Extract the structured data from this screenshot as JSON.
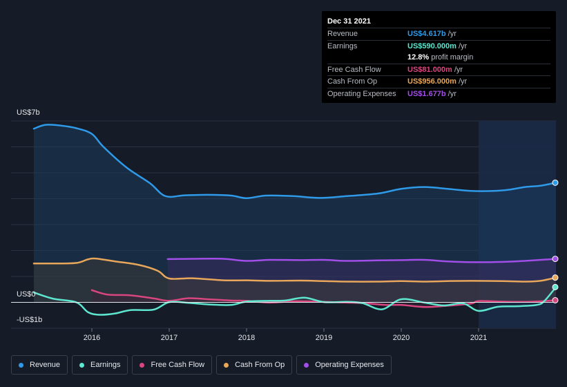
{
  "tooltip": {
    "date": "Dec 31 2021",
    "rows": [
      {
        "label": "Revenue",
        "value": "US$4.617b",
        "unit": "/yr",
        "color": "#2f9be8"
      },
      {
        "label": "Earnings",
        "value": "US$590.000m",
        "unit": "/yr",
        "color": "#5ee6cf"
      },
      {
        "label": "",
        "value": "12.8%",
        "unit": "profit margin",
        "color": "#ffffff"
      },
      {
        "label": "Free Cash Flow",
        "value": "US$81.000m",
        "unit": "/yr",
        "color": "#d9467f"
      },
      {
        "label": "Cash From Op",
        "value": "US$956.000m",
        "unit": "/yr",
        "color": "#e8a75a"
      },
      {
        "label": "Operating Expenses",
        "value": "US$1.677b",
        "unit": "/yr",
        "color": "#a24ee8"
      }
    ]
  },
  "legend": [
    {
      "label": "Revenue",
      "color": "#2f9be8"
    },
    {
      "label": "Earnings",
      "color": "#5ee6cf"
    },
    {
      "label": "Free Cash Flow",
      "color": "#d9467f"
    },
    {
      "label": "Cash From Op",
      "color": "#e8a75a"
    },
    {
      "label": "Operating Expenses",
      "color": "#a24ee8"
    }
  ],
  "chart_data": {
    "type": "area",
    "y_unit": "US$ billions",
    "ylim": [
      -1,
      7
    ],
    "y_tick_labels": [
      "US$7b",
      "US$0",
      "-US$1b"
    ],
    "x_tick_labels": [
      "2016",
      "2017",
      "2018",
      "2019",
      "2020",
      "2021"
    ],
    "x_ticks": [
      2016,
      2017,
      2018,
      2019,
      2020,
      2021
    ],
    "xlim": [
      2015.1,
      2022.0
    ],
    "highlight_from": 2021.0,
    "series": [
      {
        "name": "Revenue",
        "color": "#2f9be8",
        "fill": true,
        "points": [
          [
            2015.25,
            6.7
          ],
          [
            2015.4,
            6.85
          ],
          [
            2015.6,
            6.82
          ],
          [
            2015.8,
            6.72
          ],
          [
            2016.0,
            6.5
          ],
          [
            2016.15,
            6.0
          ],
          [
            2016.45,
            5.2
          ],
          [
            2016.75,
            4.6
          ],
          [
            2016.95,
            4.1
          ],
          [
            2017.2,
            4.13
          ],
          [
            2017.5,
            4.15
          ],
          [
            2017.8,
            4.12
          ],
          [
            2018.0,
            4.02
          ],
          [
            2018.25,
            4.12
          ],
          [
            2018.6,
            4.1
          ],
          [
            2018.95,
            4.03
          ],
          [
            2019.3,
            4.1
          ],
          [
            2019.7,
            4.2
          ],
          [
            2020.0,
            4.38
          ],
          [
            2020.3,
            4.45
          ],
          [
            2020.6,
            4.38
          ],
          [
            2020.9,
            4.3
          ],
          [
            2021.2,
            4.3
          ],
          [
            2021.4,
            4.35
          ],
          [
            2021.6,
            4.45
          ],
          [
            2021.8,
            4.5
          ],
          [
            2022.0,
            4.617
          ]
        ]
      },
      {
        "name": "Operating Expenses",
        "color": "#a24ee8",
        "fill": true,
        "points": [
          [
            2016.98,
            1.67
          ],
          [
            2017.3,
            1.68
          ],
          [
            2017.7,
            1.68
          ],
          [
            2018.0,
            1.6
          ],
          [
            2018.3,
            1.64
          ],
          [
            2018.7,
            1.63
          ],
          [
            2019.0,
            1.64
          ],
          [
            2019.3,
            1.6
          ],
          [
            2019.7,
            1.62
          ],
          [
            2020.0,
            1.63
          ],
          [
            2020.3,
            1.64
          ],
          [
            2020.6,
            1.58
          ],
          [
            2020.9,
            1.55
          ],
          [
            2021.3,
            1.56
          ],
          [
            2021.6,
            1.6
          ],
          [
            2022.0,
            1.677
          ]
        ]
      },
      {
        "name": "Cash From Op",
        "color": "#e8a75a",
        "fill": true,
        "points": [
          [
            2015.25,
            1.5
          ],
          [
            2015.5,
            1.5
          ],
          [
            2015.8,
            1.52
          ],
          [
            2015.95,
            1.66
          ],
          [
            2016.05,
            1.69
          ],
          [
            2016.3,
            1.58
          ],
          [
            2016.6,
            1.45
          ],
          [
            2016.85,
            1.22
          ],
          [
            2017.0,
            0.92
          ],
          [
            2017.3,
            0.93
          ],
          [
            2017.7,
            0.85
          ],
          [
            2018.0,
            0.85
          ],
          [
            2018.3,
            0.83
          ],
          [
            2018.7,
            0.84
          ],
          [
            2019.0,
            0.82
          ],
          [
            2019.3,
            0.8
          ],
          [
            2019.7,
            0.8
          ],
          [
            2020.0,
            0.82
          ],
          [
            2020.3,
            0.8
          ],
          [
            2020.6,
            0.82
          ],
          [
            2020.9,
            0.83
          ],
          [
            2021.3,
            0.82
          ],
          [
            2021.6,
            0.8
          ],
          [
            2021.8,
            0.83
          ],
          [
            2022.0,
            0.956
          ]
        ]
      },
      {
        "name": "Free Cash Flow",
        "color": "#d9467f",
        "fill": true,
        "points": [
          [
            2016.0,
            0.47
          ],
          [
            2016.2,
            0.3
          ],
          [
            2016.5,
            0.27
          ],
          [
            2016.8,
            0.15
          ],
          [
            2017.0,
            0.06
          ],
          [
            2017.25,
            0.16
          ],
          [
            2017.5,
            0.12
          ],
          [
            2017.8,
            0.07
          ],
          [
            2018.0,
            0.06
          ],
          [
            2018.3,
            -0.01
          ],
          [
            2018.6,
            0.04
          ],
          [
            2018.9,
            0.03
          ],
          [
            2019.2,
            0.0
          ],
          [
            2019.5,
            -0.03
          ],
          [
            2019.8,
            -0.1
          ],
          [
            2020.0,
            -0.1
          ],
          [
            2020.3,
            -0.18
          ],
          [
            2020.6,
            -0.13
          ],
          [
            2020.9,
            -0.05
          ],
          [
            2021.0,
            0.05
          ],
          [
            2021.3,
            0.03
          ],
          [
            2021.6,
            0.02
          ],
          [
            2021.8,
            0.04
          ],
          [
            2022.0,
            0.081
          ]
        ]
      },
      {
        "name": "Earnings",
        "color": "#5ee6cf",
        "fill": false,
        "points": [
          [
            2015.25,
            0.38
          ],
          [
            2015.5,
            0.14
          ],
          [
            2015.8,
            0.0
          ],
          [
            2015.95,
            -0.38
          ],
          [
            2016.1,
            -0.48
          ],
          [
            2016.3,
            -0.43
          ],
          [
            2016.5,
            -0.3
          ],
          [
            2016.8,
            -0.28
          ],
          [
            2017.0,
            0.01
          ],
          [
            2017.25,
            -0.02
          ],
          [
            2017.5,
            -0.08
          ],
          [
            2017.8,
            -0.1
          ],
          [
            2018.0,
            0.03
          ],
          [
            2018.3,
            0.06
          ],
          [
            2018.5,
            0.07
          ],
          [
            2018.75,
            0.18
          ],
          [
            2019.0,
            0.01
          ],
          [
            2019.3,
            0.02
          ],
          [
            2019.5,
            -0.03
          ],
          [
            2019.75,
            -0.27
          ],
          [
            2020.0,
            0.12
          ],
          [
            2020.3,
            -0.01
          ],
          [
            2020.55,
            -0.12
          ],
          [
            2020.8,
            -0.04
          ],
          [
            2021.0,
            -0.33
          ],
          [
            2021.25,
            -0.17
          ],
          [
            2021.5,
            -0.15
          ],
          [
            2021.75,
            -0.1
          ],
          [
            2021.85,
            0.05
          ],
          [
            2022.0,
            0.59
          ]
        ]
      }
    ]
  }
}
